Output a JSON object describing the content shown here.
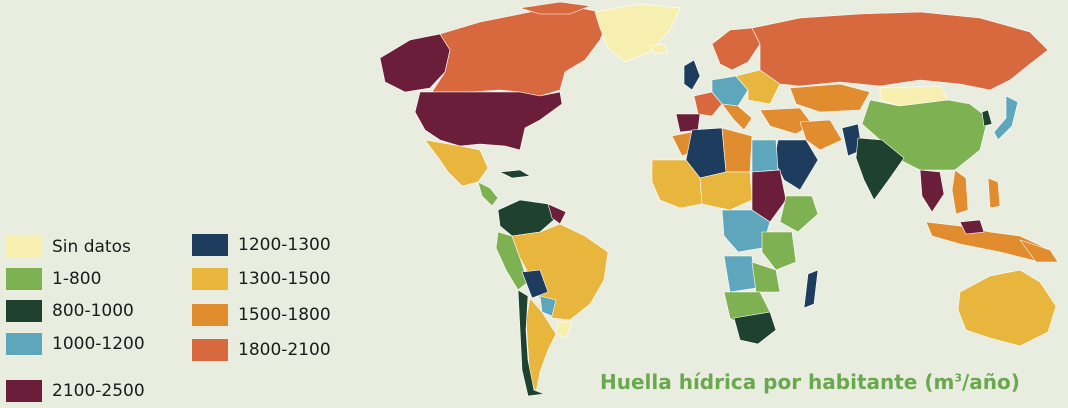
{
  "map": {
    "title_prefix": "Huella hídrica por habitante (m",
    "title_sup": "3",
    "title_suffix": "/año)"
  },
  "legend": {
    "items": [
      {
        "label": "Sin datos",
        "color": "#f7efb0"
      },
      {
        "label": "1-800",
        "color": "#7db151"
      },
      {
        "label": "800-1000",
        "color": "#1f4230"
      },
      {
        "label": "1000-1200",
        "color": "#5ea6bb"
      },
      {
        "label": "2100-2500",
        "color": "#6b1e3a"
      },
      {
        "label": "1200-1300",
        "color": "#1d3c5e"
      },
      {
        "label": "1300-1500",
        "color": "#e8b53d"
      },
      {
        "label": "1500-1800",
        "color": "#e08c2f"
      },
      {
        "label": "1800-2100",
        "color": "#d8693f"
      }
    ]
  },
  "colors": {
    "background": "#e9ede0",
    "title": "#6aa84f",
    "border": "#ffffff"
  }
}
